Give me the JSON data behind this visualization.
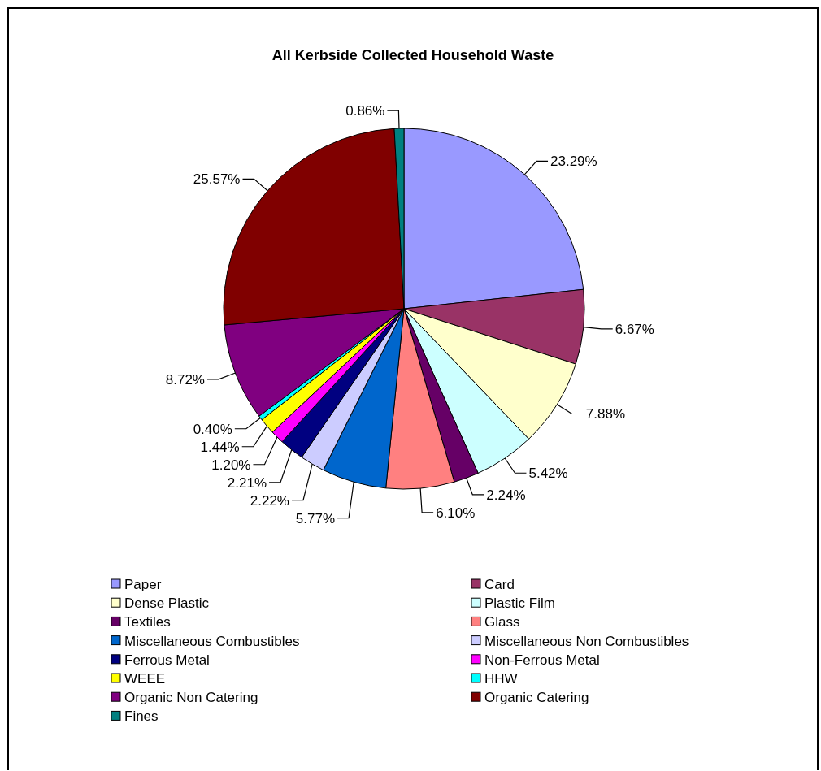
{
  "chart_data": {
    "type": "pie",
    "title": "All Kerbside Collected Household Waste",
    "categories": [
      "Paper",
      "Card",
      "Dense Plastic",
      "Plastic Film",
      "Textiles",
      "Glass",
      "Miscellaneous Combustibles",
      "Miscellaneous Non Combustibles",
      "Ferrous Metal",
      "Non-Ferrous Metal",
      "WEEE",
      "HHW",
      "Organic Non Catering",
      "Organic Catering",
      "Fines"
    ],
    "values": [
      23.29,
      6.67,
      7.88,
      5.42,
      2.24,
      6.1,
      5.77,
      2.22,
      2.21,
      1.2,
      1.44,
      0.4,
      8.72,
      25.57,
      0.86
    ],
    "value_labels": [
      "23.29%",
      "6.67%",
      "7.88%",
      "5.42%",
      "2.24%",
      "6.10%",
      "5.77%",
      "2.22%",
      "2.21%",
      "1.20%",
      "1.44%",
      "0.40%",
      "8.72%",
      "25.57%",
      "0.86%"
    ],
    "colors": [
      "#9999ff",
      "#993366",
      "#ffffcc",
      "#ccffff",
      "#660066",
      "#ff8080",
      "#0066cc",
      "#ccccff",
      "#000080",
      "#ff00ff",
      "#ffff00",
      "#00ffff",
      "#800080",
      "#800000",
      "#008080"
    ],
    "legend": "bottom"
  }
}
